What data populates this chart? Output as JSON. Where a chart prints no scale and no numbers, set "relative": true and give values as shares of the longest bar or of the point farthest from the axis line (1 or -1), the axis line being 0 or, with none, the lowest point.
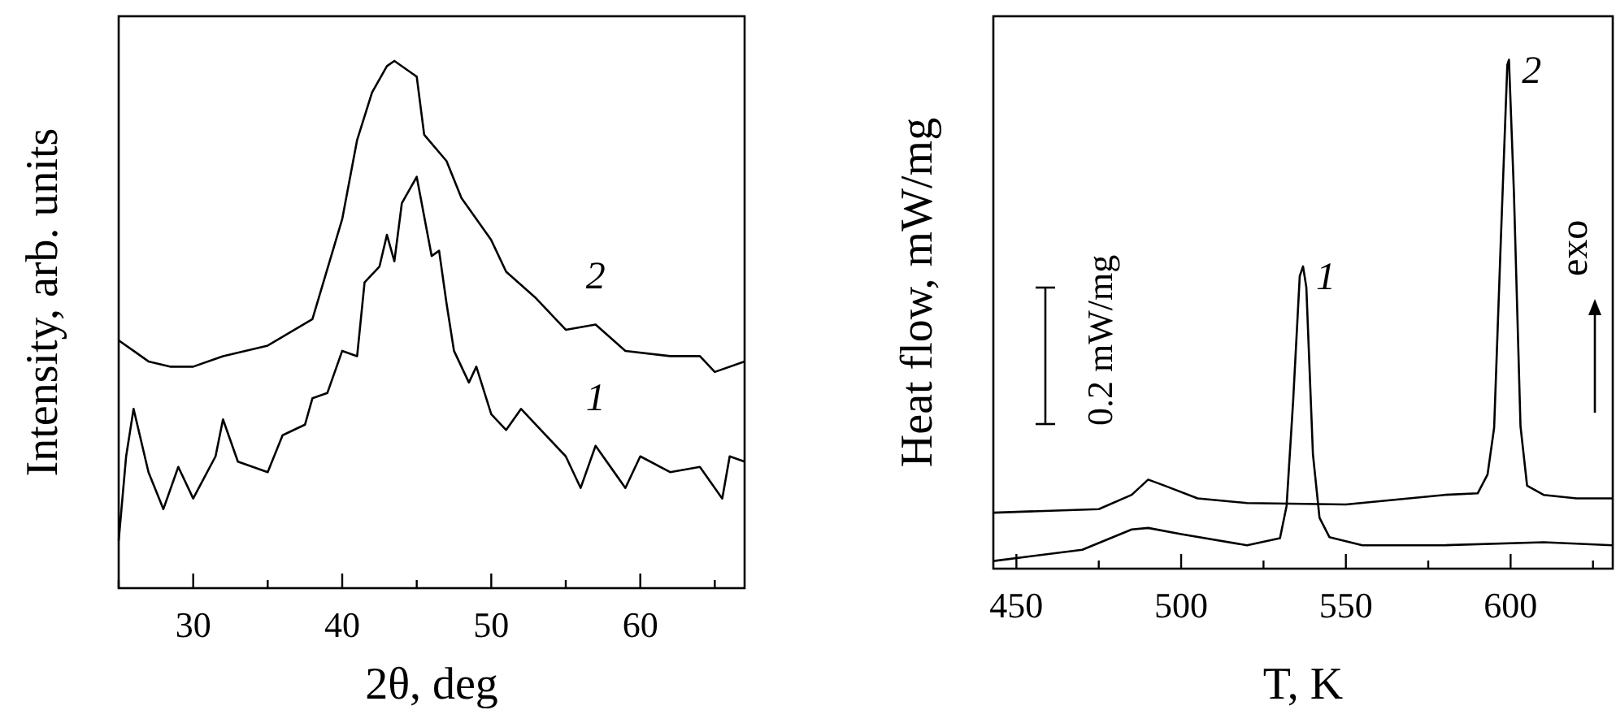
{
  "chart_data": [
    {
      "type": "line",
      "relative": true,
      "xlabel": "2θ, deg",
      "ylabel": "Intensity, arb. units",
      "xlim": [
        25,
        67
      ],
      "xticks": [
        {
          "value": 25,
          "label": null
        },
        30,
        {
          "value": 35,
          "label": null
        },
        40,
        {
          "value": 45,
          "label": null
        },
        50,
        {
          "value": 55,
          "label": null
        },
        60,
        {
          "value": 65,
          "label": null
        }
      ],
      "tick_labels": "x",
      "marker": "none",
      "line_style": "solid",
      "series": [
        {
          "name": "1",
          "color": "#000000",
          "x": [
            25,
            25.5,
            26,
            27,
            28,
            29,
            30,
            31.5,
            32,
            33,
            35,
            36,
            37.5,
            38,
            39,
            40,
            41,
            41.5,
            42.5,
            43,
            43.5,
            44,
            45,
            46,
            46.5,
            47,
            47.5,
            48.5,
            49,
            50,
            51,
            52,
            53,
            55,
            56,
            57,
            59,
            60,
            62,
            64,
            65.5,
            66,
            67
          ],
          "values": [
            0.09,
            0.25,
            0.34,
            0.22,
            0.15,
            0.23,
            0.17,
            0.25,
            0.32,
            0.24,
            0.22,
            0.29,
            0.31,
            0.36,
            0.37,
            0.45,
            0.44,
            0.58,
            0.61,
            0.67,
            0.62,
            0.73,
            0.78,
            0.63,
            0.64,
            0.54,
            0.45,
            0.39,
            0.42,
            0.33,
            0.3,
            0.34,
            0.31,
            0.25,
            0.19,
            0.27,
            0.19,
            0.25,
            0.22,
            0.23,
            0.17,
            0.25,
            0.24
          ]
        },
        {
          "name": "2",
          "color": "#000000",
          "x": [
            25,
            26,
            27,
            28.5,
            30,
            32,
            35,
            38,
            40,
            41,
            42,
            43,
            43.5,
            45,
            45.5,
            47,
            48,
            50,
            51,
            53,
            55,
            57,
            59,
            62,
            64,
            65,
            67
          ],
          "values": [
            0.47,
            0.45,
            0.43,
            0.42,
            0.42,
            0.44,
            0.46,
            0.51,
            0.7,
            0.85,
            0.94,
            0.99,
            1,
            0.97,
            0.86,
            0.81,
            0.74,
            0.66,
            0.6,
            0.55,
            0.49,
            0.5,
            0.45,
            0.44,
            0.44,
            0.41,
            0.43
          ]
        }
      ]
    },
    {
      "type": "line",
      "relative": true,
      "xlabel": "T, K",
      "ylabel": "Heat flow, mW/mg",
      "xlim": [
        443,
        631
      ],
      "xticks": [
        450,
        {
          "value": 475,
          "label": null
        },
        500,
        {
          "value": 525,
          "label": null
        },
        550,
        {
          "value": 575,
          "label": null
        },
        600,
        {
          "value": 625,
          "label": null
        }
      ],
      "tick_labels": "x",
      "marker": "none",
      "line_style": "solid",
      "annotations": [
        "0.2 mW/mg",
        "exo"
      ],
      "series": [
        {
          "name": "1",
          "color": "#000000",
          "x": [
            443,
            470,
            485,
            490,
            500,
            520,
            530,
            532,
            534,
            536,
            537,
            538,
            540,
            542,
            545,
            555,
            580,
            610,
            620,
            631
          ],
          "values": [
            0.015,
            0.037,
            0.077,
            0.08,
            0.068,
            0.046,
            0.06,
            0.123,
            0.33,
            0.575,
            0.594,
            0.553,
            0.225,
            0.1,
            0.062,
            0.046,
            0.046,
            0.052,
            0.049,
            0.046
          ]
        },
        {
          "name": "2",
          "color": "#000000",
          "x": [
            443,
            475,
            485,
            490,
            495,
            505,
            520,
            550,
            580,
            590,
            593,
            595,
            597,
            599,
            599.5,
            601,
            603,
            605,
            610,
            620,
            631
          ],
          "values": [
            0.11,
            0.117,
            0.145,
            0.175,
            0.163,
            0.138,
            0.129,
            0.126,
            0.145,
            0.148,
            0.185,
            0.277,
            0.64,
            0.99,
            1,
            0.74,
            0.28,
            0.163,
            0.145,
            0.138,
            0.138
          ]
        }
      ]
    }
  ]
}
